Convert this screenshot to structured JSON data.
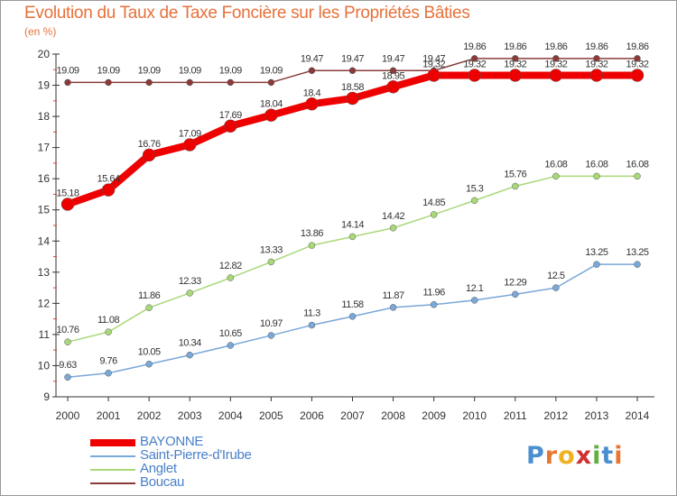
{
  "chart_data": {
    "type": "line",
    "title": "Evolution du Taux de Taxe Foncière sur les Propriétés Bâties",
    "ylabel": "(en %)",
    "xlabel": "",
    "x": [
      "2000",
      "2001",
      "2002",
      "2003",
      "2004",
      "2005",
      "2006",
      "2007",
      "2008",
      "2009",
      "2010",
      "2011",
      "2012",
      "2013",
      "2014"
    ],
    "ylim": [
      9,
      20
    ],
    "yticks": [
      "9",
      "10",
      "11",
      "12",
      "13",
      "14",
      "15",
      "16",
      "17",
      "18",
      "19",
      "20"
    ],
    "grid": false,
    "legend_position": "bottom-left",
    "series": [
      {
        "name": "BAYONNE",
        "color": "#ee0000",
        "values": [
          15.18,
          15.64,
          16.76,
          17.09,
          17.69,
          18.04,
          18.4,
          18.58,
          18.95,
          19.32,
          19.32,
          19.32,
          19.32,
          19.32,
          19.32
        ],
        "labels": [
          "15.18",
          "15.64",
          "16.76",
          "17.09",
          "17.69",
          "18.04",
          "18.4",
          "18.58",
          "18.95",
          "19.32",
          "19.32",
          "19.32",
          "19.32",
          "19.32",
          "19.32"
        ]
      },
      {
        "name": "Saint-Pierre-d'Irube",
        "color": "#7aa8d8",
        "values": [
          9.63,
          9.76,
          10.05,
          10.34,
          10.65,
          10.97,
          11.3,
          11.58,
          11.87,
          11.96,
          12.1,
          12.29,
          12.5,
          13.25,
          13.25
        ],
        "labels": [
          "9.63",
          "9.76",
          "10.05",
          "10.34",
          "10.65",
          "10.97",
          "11.3",
          "11.58",
          "11.87",
          "11.96",
          "12.1",
          "12.29",
          "12.5",
          "13.25",
          "13.25"
        ]
      },
      {
        "name": "Anglet",
        "color": "#a8d878",
        "values": [
          10.76,
          11.08,
          11.86,
          12.33,
          12.82,
          13.33,
          13.86,
          14.14,
          14.42,
          14.85,
          15.3,
          15.76,
          16.08,
          16.08,
          16.08
        ],
        "labels": [
          "10.76",
          "11.08",
          "11.86",
          "12.33",
          "12.82",
          "13.33",
          "13.86",
          "14.14",
          "14.42",
          "14.85",
          "15.3",
          "15.76",
          "16.08",
          "16.08",
          "16.08"
        ]
      },
      {
        "name": "Boucau",
        "color": "#8b3a3a",
        "values": [
          19.09,
          19.09,
          19.09,
          19.09,
          19.09,
          19.09,
          19.47,
          19.47,
          19.47,
          19.47,
          19.86,
          19.86,
          19.86,
          19.86,
          19.86
        ],
        "labels": [
          "19.09",
          "19.09",
          "19.09",
          "19.09",
          "19.09",
          "19.09",
          "19.47",
          "19.47",
          "19.47",
          "19.47",
          "19.86",
          "19.86",
          "19.86",
          "19.86",
          "19.86"
        ]
      }
    ]
  },
  "logo": {
    "letters": [
      "P",
      "r",
      "o",
      "x",
      "i",
      "t",
      "i"
    ],
    "colors": [
      "#4a90d0",
      "#e87830",
      "#f0b020",
      "#d03030",
      "#60b040",
      "#4a90d0",
      "#e87830"
    ]
  }
}
